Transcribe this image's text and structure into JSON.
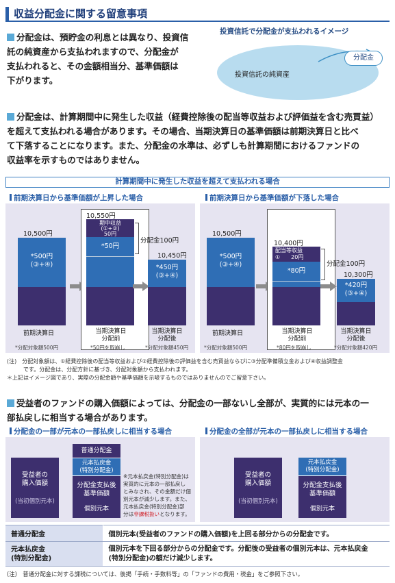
{
  "header": {
    "title": "収益分配金に関する留意事項"
  },
  "para1": {
    "lines": [
      "分配金は、預貯金の利息とは異なり、投資信",
      "託の純資産から支払われますので、分配金が",
      "支払われると、その金額相当分、基準価額は",
      "下がります。"
    ]
  },
  "illustration": {
    "caption": "投資信託で分配金が支払われるイメージ",
    "assets_label": "投資信託の純資産",
    "dist_label": "分配金"
  },
  "para2": {
    "lines": [
      "分配金は、計算期間中に発生した収益（経費控除後の配当等収益および評価益を含む売買益）",
      "を超えて支払われる場合があります。その場合、当期決算日の基準価額は前期決算日と比べ",
      "て下落することになります。また、分配金の水準は、必ずしも計算期間におけるファンドの",
      "収益率を示すものではありません。"
    ]
  },
  "banner": "計算期間中に発生した収益を超えて支払われる場合",
  "case_up": {
    "heading": "前期決算日から基準価額が上昇した場合",
    "prev_value": "10,500円",
    "prev_inner": [
      "*500円",
      "(③+④)"
    ],
    "mid_value": "10,550円",
    "mid_box": [
      "期中収益",
      "(①+②)",
      "50円"
    ],
    "mid_inner": "*50円",
    "dist": "分配金100円",
    "after_value": "10,450円",
    "after_inner": [
      "*450円",
      "(③+④)"
    ],
    "x_prev": "前期決算日",
    "x_mid": [
      "当期決算日",
      "分配前"
    ],
    "x_after": [
      "当期決算日",
      "分配後"
    ],
    "s_prev": "*分配対象額500円",
    "s_mid": "*50円を取崩し",
    "s_after": "*分配対象額450円"
  },
  "case_down": {
    "heading": "前期決算日から基準価額が下落した場合",
    "prev_value": "10,500円",
    "prev_inner": [
      "*500円",
      "(③+④)"
    ],
    "mid_value": "10,400円",
    "mid_box": [
      "配当等収益",
      "①　　20円"
    ],
    "mid_inner": "*80円",
    "dist": "分配金100円",
    "after_value": "10,300円",
    "after_inner": [
      "*420円",
      "(③+④)"
    ],
    "x_prev": "前期決算日",
    "x_mid": [
      "当期決算日",
      "分配前"
    ],
    "x_after": [
      "当期決算日",
      "分配後"
    ],
    "s_prev": "*分配対象額500円",
    "s_mid": "*80円を取崩し",
    "s_after": "*分配対象額420円"
  },
  "notes": [
    "(注)　分配対象額は、①経費控除後の配当等収益および②経費控除後の評価益を含む売買益ならびに③分配準備積立金および④収益調整金",
    "　　　です。分配金は、分配方針に基づき、分配対象額から支払われます。",
    "＊上記はイメージ図であり、実際の分配金額や基準価額を示唆するものではありませんのでご留意下さい。"
  ],
  "para3": {
    "lines": [
      "受益者のファンドの購入価額によっては、分配金の一部ないし全部が、実質的には元本の一",
      "部払戻しに相当する場合があります。"
    ]
  },
  "part_case": {
    "heading": "分配金の一部が元本の一部払戻しに相当する場合",
    "left_box": [
      "受益者の",
      "購入価額"
    ],
    "left_sub": "(当初個別元本)",
    "top_box": "普通分配金",
    "ret_box": [
      "元本払戻金",
      "(特別分配金)"
    ],
    "after_box": [
      "分配金支払後",
      "基準価額"
    ],
    "after_sub": "個別元本",
    "note_lines": [
      "※元本払戻金(特別分配金)は",
      "実質的に元本の一部払戻し",
      "とみなされ、その金額だけ個",
      "別元本が減少します。また、",
      "元本払戻金(特別分配金)部",
      "分は"
    ],
    "note_red": "非課税扱い",
    "note_end": "となります。"
  },
  "all_case": {
    "heading": "分配金の全部が元本の一部払戻しに相当する場合",
    "left_box": [
      "受益者の",
      "購入価額"
    ],
    "left_sub": "(当初個別元本)",
    "ret_box": [
      "元本払戻金",
      "(特別分配金)"
    ],
    "after_box": [
      "分配金支払後",
      "基準価額"
    ],
    "after_sub": "個別元本"
  },
  "table": [
    {
      "term": "普通分配金",
      "desc": "個別元本(受益者のファンドの購入価額)を上回る部分からの分配金です。"
    },
    {
      "term": [
        "元本払戻金",
        "(特別分配金)"
      ],
      "desc": [
        "個別元本を下回る部分からの分配金です。分配後の受益者の個別元本は、元本払戻金",
        "(特別分配金)の額だけ減少します。"
      ]
    }
  ],
  "footnote": "(注)　普通分配金に対する課税については、後掲「手続・手数料等」の「ファンドの費用・税金」をご参照下さい。",
  "colors": {
    "navy": "#3d2f6e",
    "blue": "#2f6eb5",
    "panel": "#e6e4f1",
    "accent": "#5aa9d6"
  }
}
